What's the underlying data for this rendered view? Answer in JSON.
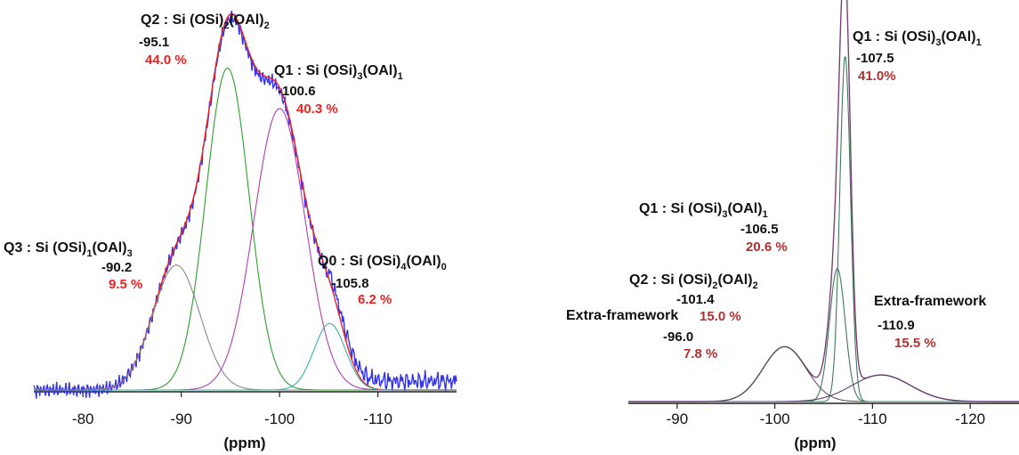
{
  "chart_data": [
    {
      "type": "line",
      "xlabel": "(ppm)",
      "xlim": [
        -75,
        -118
      ],
      "x_ticks": [
        "-80",
        "-90",
        "-100",
        "-110"
      ],
      "reversed_x": true,
      "grid": false,
      "series": [
        {
          "color": "#3333ee",
          "role": "experimental"
        },
        {
          "color": "#ee2222",
          "role": "fit"
        },
        {
          "color": "#888888",
          "center": -89.5,
          "height": 0.355,
          "width": 2.4
        },
        {
          "color": "#2e9e2e",
          "center": -94.7,
          "height": 0.915,
          "width": 2.2
        },
        {
          "color": "#b03fb0",
          "center": -100.0,
          "height": 0.8,
          "width": 2.6
        },
        {
          "color": "#39b0a8",
          "center": -105.1,
          "height": 0.189,
          "width": 1.6
        }
      ],
      "annotations": [
        {
          "site": "Q3",
          "label_main": "Q3 : Si (OSi)",
          "sub1": "1",
          "mid": "(OAl)",
          "sub2": "3",
          "shift": "-90.2",
          "percent": "9.5 %"
        },
        {
          "site": "Q2",
          "label_main": "Q2 : Si (OSi)",
          "sub1": "2",
          "mid": "(OAl)",
          "sub2": "2",
          "shift": "-95.1",
          "percent": "44.0 %"
        },
        {
          "site": "Q1",
          "label_main": "Q1 : Si (OSi)",
          "sub1": "3",
          "mid": "(OAl)",
          "sub2": "1",
          "shift": "-100.6",
          "percent": "40.3 %"
        },
        {
          "site": "Q0",
          "label_main": "Q0 : Si (OSi)",
          "sub1": "4",
          "mid": "(OAl)",
          "sub2": "0",
          "shift": "-105.8",
          "percent": "6.2 %"
        }
      ],
      "percent_color": "#ee2222"
    },
    {
      "type": "line",
      "xlabel": "(ppm)",
      "xlim": [
        -85,
        -125
      ],
      "x_ticks": [
        "-90",
        "-100",
        "-110",
        "-120"
      ],
      "reversed_x": true,
      "grid": false,
      "series": [
        {
          "color": "#7a3f78",
          "role": "experimental"
        },
        {
          "color": "#555555",
          "center": -101.0,
          "height": 0.138,
          "width": 2.2
        },
        {
          "color": "#3f7a5a",
          "center": -106.4,
          "height": 0.335,
          "width": 0.8
        },
        {
          "color": "#3f7a5a",
          "center": -107.2,
          "height": 0.87,
          "width": 0.55
        },
        {
          "color": "#5a3f70",
          "center": -110.9,
          "height": 0.067,
          "width": 3.0
        }
      ],
      "annotations": [
        {
          "site": "EF1",
          "label_main": "Extra-framework",
          "shift": "-96.0",
          "percent": "7.8 %"
        },
        {
          "site": "Q2",
          "label_main": "Q2 : Si (OSi)",
          "sub1": "2",
          "mid": "(OAl)",
          "sub2": "2",
          "shift": "-101.4",
          "percent": "15.0 %"
        },
        {
          "site": "Q1a",
          "label_main": "Q1 : Si (OSi)",
          "sub1": "3",
          "mid": "(OAl)",
          "sub2": "1",
          "shift": "-106.5",
          "percent": "20.6 %"
        },
        {
          "site": "Q1b",
          "label_main": "Q1 : Si (OSi)",
          "sub1": "3",
          "mid": "(OAl)",
          "sub2": "1",
          "shift": "-107.5",
          "percent": "41.0%"
        },
        {
          "site": "EF2",
          "label_main": "Extra-framework",
          "shift": "-110.9",
          "percent": "15.5 %"
        }
      ],
      "percent_color": "#b03030"
    }
  ]
}
